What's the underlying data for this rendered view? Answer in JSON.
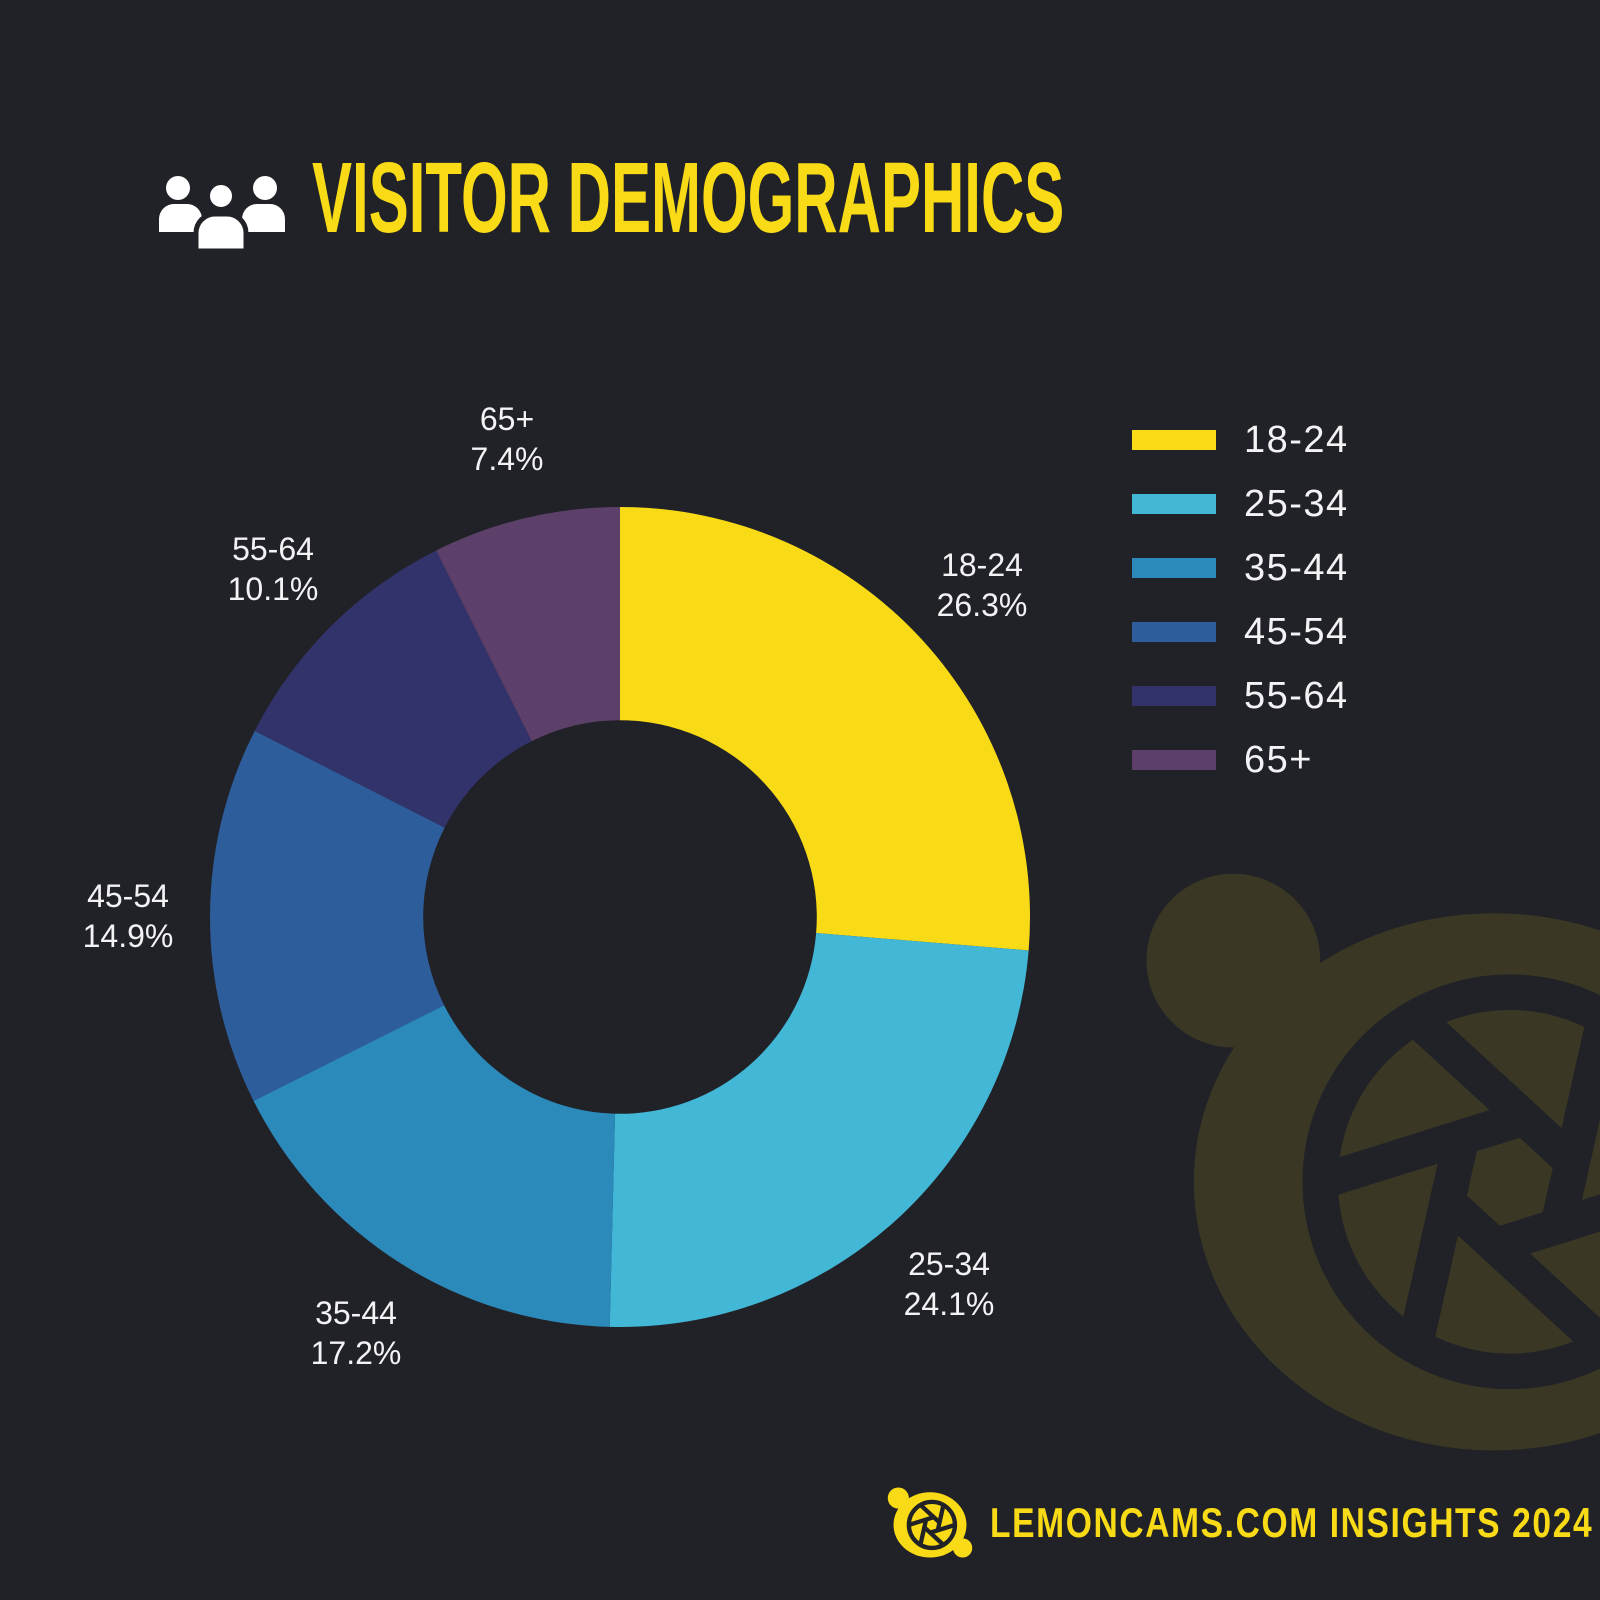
{
  "header": {
    "title": "VISITOR DEMOGRAPHICS",
    "icon": "people-group-icon"
  },
  "chart_data": {
    "type": "pie",
    "subtype": "donut",
    "title": "VISITOR DEMOGRAPHICS",
    "categories": [
      "18-24",
      "25-34",
      "35-44",
      "45-54",
      "55-64",
      "65+"
    ],
    "values": [
      26.3,
      24.1,
      17.2,
      14.9,
      10.1,
      7.4
    ],
    "unit": "%",
    "colors": [
      "#F8DB16",
      "#42B7D6",
      "#2C8ABB",
      "#2E5D9B",
      "#32336B",
      "#5D4069"
    ],
    "start_angle_deg": 0,
    "direction": "clockwise",
    "inner_radius_ratio": 0.48,
    "labels_outside": true,
    "legend_position": "right"
  },
  "footer": {
    "text": "LEMONCAMS.COM INSIGHTS 2024",
    "logo": "lemon-aperture-logo"
  },
  "watermark": {
    "name": "lemon-aperture-watermark"
  },
  "colors": {
    "background": "#202227",
    "accent_yellow": "#F8DB16",
    "label_text": "#F3F2F5",
    "watermark_olive": "#3A3824"
  }
}
